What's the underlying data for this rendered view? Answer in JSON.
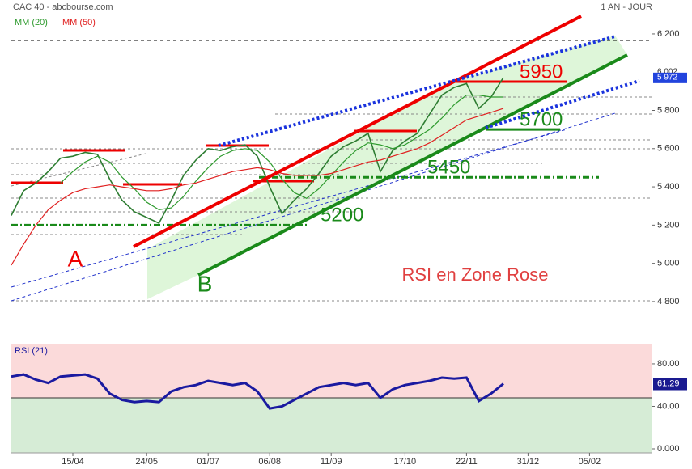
{
  "header": {
    "title": "CAC 40 - abcbourse.com",
    "period": "1 AN - JOUR"
  },
  "chart_data": [
    {
      "type": "line",
      "categories": [
        null,
        null,
        null,
        null,
        null,
        "15/04",
        null,
        null,
        null,
        null,
        null,
        "24/05",
        null,
        null,
        null,
        null,
        "01/07",
        null,
        null,
        null,
        null,
        "06/08",
        null,
        null,
        null,
        null,
        "11/09",
        null,
        null,
        null,
        null,
        null,
        "17/10",
        null,
        null,
        null,
        null,
        "22/11",
        null,
        null,
        null,
        null,
        "31/12",
        null,
        null,
        null,
        null,
        "05/02",
        null,
        null,
        null,
        null,
        null
      ],
      "series": [
        {
          "color": "#2e7d32",
          "values": [
            5250,
            5380,
            5420,
            5480,
            5550,
            5560,
            5580,
            5570,
            5440,
            5330,
            5270,
            5240,
            5210,
            5330,
            5460,
            5540,
            5600,
            5590,
            5610,
            5620,
            5560,
            5400,
            5260,
            5330,
            5390,
            5470,
            5560,
            5610,
            5640,
            5680,
            5480,
            5590,
            5640,
            5680,
            5780,
            5880,
            5920,
            5940,
            5810,
            5870,
            5972,
            null,
            null,
            null,
            null,
            null,
            null,
            null,
            null,
            null,
            null,
            null,
            null
          ]
        },
        {
          "name": "MM (20)",
          "color": "#2e9a2e",
          "values": [
            null,
            null,
            null,
            null,
            5420,
            5480,
            5530,
            5560,
            5530,
            5450,
            5390,
            5320,
            5280,
            5290,
            5350,
            5430,
            5500,
            5560,
            5590,
            5600,
            5590,
            5530,
            5440,
            5370,
            5340,
            5390,
            5460,
            5530,
            5590,
            5630,
            5620,
            5600,
            5620,
            5660,
            5700,
            5760,
            5830,
            5880,
            5880,
            5870,
            5870,
            null,
            null,
            null,
            null,
            null,
            null,
            null,
            null,
            null,
            null,
            null,
            null
          ]
        },
        {
          "name": "MM (50)",
          "color": "#e02020",
          "values": [
            4990,
            5100,
            5200,
            5280,
            5330,
            5370,
            5390,
            5400,
            5410,
            5400,
            5390,
            5380,
            5380,
            5390,
            5410,
            5420,
            5440,
            5460,
            5480,
            5490,
            5500,
            5490,
            5470,
            5460,
            5460,
            5460,
            5470,
            5490,
            5510,
            5530,
            5540,
            5560,
            5580,
            5600,
            5630,
            5670,
            5710,
            5750,
            5770,
            5790,
            5810,
            null,
            null,
            null,
            null,
            null,
            null,
            null,
            null,
            null,
            null,
            null,
            null
          ]
        }
      ],
      "ylim": [
        4770,
        6314
      ],
      "yticks": [
        {
          "value": 4800,
          "label": "4 800"
        },
        {
          "value": 5000,
          "label": "5 000"
        },
        {
          "value": 5200,
          "label": "5 200"
        },
        {
          "value": 5400,
          "label": "5 400"
        },
        {
          "value": 5600,
          "label": "5 600"
        },
        {
          "value": 5800,
          "label": "5 800"
        },
        {
          "value": 6200,
          "label": "6 200"
        }
      ],
      "price_tags": [
        {
          "value": 6002,
          "label": "6 002"
        },
        {
          "value": 5972,
          "label": "5 972"
        }
      ],
      "levels": [
        5950,
        5700,
        5450,
        5200
      ],
      "annotations": [
        "A",
        "B",
        "RSI en Zone Rose"
      ]
    },
    {
      "type": "line",
      "title": "RSI (21)",
      "series": [
        {
          "color": "#1a1aa0",
          "values": [
            68,
            70,
            65,
            62,
            68,
            69,
            70,
            66,
            52,
            46,
            44,
            45,
            44,
            54,
            58,
            60,
            64,
            62,
            60,
            62,
            54,
            38,
            40,
            46,
            52,
            58,
            60,
            62,
            60,
            62,
            48,
            56,
            60,
            62,
            64,
            67,
            66,
            67,
            45,
            52,
            61.29,
            null,
            null,
            null,
            null,
            null,
            null,
            null,
            null,
            null,
            null,
            null,
            null
          ]
        }
      ],
      "ylim": [
        0,
        99
      ],
      "yticks": [
        {
          "value": 0,
          "label": "0.000"
        },
        {
          "value": 40,
          "label": "40.00"
        },
        {
          "value": 80,
          "label": "80.00"
        }
      ]
    }
  ]
}
